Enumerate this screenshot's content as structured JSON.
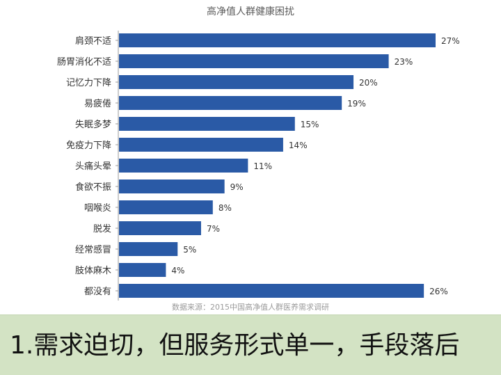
{
  "chart_data": {
    "type": "bar",
    "orientation": "horizontal",
    "title": "高净值人群健康困扰",
    "categories": [
      "肩颈不适",
      "肠胃消化不适",
      "记忆力下降",
      "易疲倦",
      "失眠多梦",
      "免疫力下降",
      "头痛头晕",
      "食欲不振",
      "咽喉炎",
      "脱发",
      "经常感冒",
      "肢体麻木",
      "都没有"
    ],
    "values": [
      27,
      23,
      20,
      19,
      15,
      14,
      11,
      9,
      8,
      7,
      5,
      4,
      26
    ],
    "value_labels": [
      "27%",
      "23%",
      "20%",
      "19%",
      "15%",
      "14%",
      "11%",
      "9%",
      "8%",
      "7%",
      "5%",
      "4%",
      "26%"
    ],
    "unit": "%",
    "xlim": [
      0,
      30
    ],
    "grid": false,
    "bar_color": "#2a5aa6",
    "source": "数据来源：2015中国高净值人群医养需求调研"
  },
  "banner": {
    "text": "1.需求迫切，但服务形式单一，手段落后",
    "background": "#d3e3c4"
  }
}
